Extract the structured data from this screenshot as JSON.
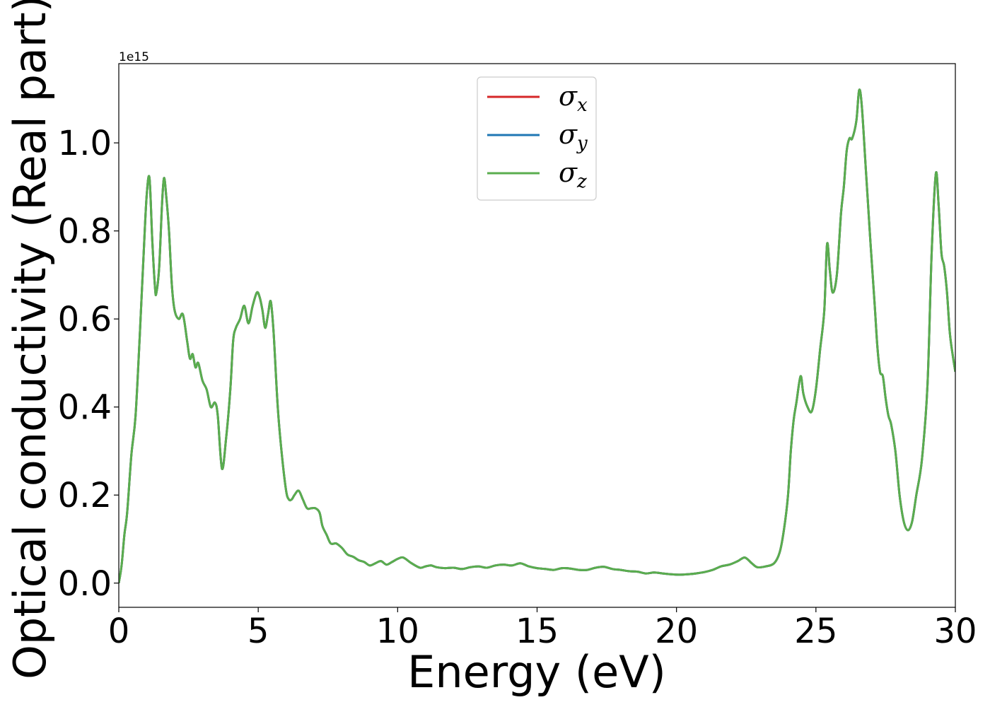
{
  "chart_data": {
    "type": "line",
    "xlabel": "Energy (eV)",
    "ylabel": "Optical conductivity (Real part)",
    "offset_text": "1e15",
    "y_multiplier": 1000000000000000.0,
    "xlim": [
      0,
      30
    ],
    "ylim": [
      -0.055,
      1.18
    ],
    "x_ticks": [
      0,
      5,
      10,
      15,
      20,
      25,
      30
    ],
    "y_ticks": [
      0.0,
      0.2,
      0.4,
      0.6,
      0.8,
      1.0
    ],
    "x_tick_labels": [
      "0",
      "5",
      "10",
      "15",
      "20",
      "25",
      "30"
    ],
    "y_tick_labels": [
      "0.0",
      "0.2",
      "0.4",
      "0.6",
      "0.8",
      "1.0"
    ],
    "grid": false,
    "legend_placement": "upper-center",
    "series": [
      {
        "name": "σ",
        "sub": "x",
        "color": "#d62728"
      },
      {
        "name": "σ",
        "sub": "y",
        "color": "#1f77b4"
      },
      {
        "name": "σ",
        "sub": "z",
        "color": "#5aad4e"
      }
    ],
    "x": [
      0,
      0.1,
      0.2,
      0.3,
      0.45,
      0.6,
      0.75,
      0.9,
      1.0,
      1.1,
      1.2,
      1.3,
      1.35,
      1.45,
      1.55,
      1.62,
      1.7,
      1.8,
      1.9,
      2.0,
      2.15,
      2.3,
      2.45,
      2.55,
      2.65,
      2.75,
      2.85,
      3.0,
      3.15,
      3.3,
      3.45,
      3.55,
      3.7,
      3.85,
      4.0,
      4.1,
      4.2,
      4.35,
      4.5,
      4.65,
      4.8,
      4.95,
      5.05,
      5.15,
      5.25,
      5.35,
      5.45,
      5.55,
      5.7,
      5.85,
      6.0,
      6.1,
      6.2,
      6.3,
      6.45,
      6.6,
      6.75,
      6.9,
      7.05,
      7.2,
      7.3,
      7.45,
      7.6,
      7.8,
      8.0,
      8.2,
      8.4,
      8.6,
      8.8,
      9.0,
      9.2,
      9.4,
      9.6,
      9.8,
      10.0,
      10.2,
      10.5,
      10.8,
      11.0,
      11.2,
      11.4,
      11.7,
      12.0,
      12.3,
      12.6,
      12.9,
      13.2,
      13.5,
      13.8,
      14.1,
      14.4,
      14.7,
      15.0,
      15.3,
      15.6,
      15.9,
      16.2,
      16.5,
      16.8,
      17.1,
      17.4,
      17.7,
      18.0,
      18.3,
      18.6,
      18.9,
      19.2,
      19.5,
      19.8,
      20.1,
      20.4,
      20.7,
      21.0,
      21.3,
      21.6,
      21.9,
      22.2,
      22.45,
      22.7,
      22.9,
      23.2,
      23.5,
      23.7,
      23.85,
      24.0,
      24.1,
      24.2,
      24.3,
      24.45,
      24.55,
      24.7,
      24.85,
      25.0,
      25.15,
      25.3,
      25.4,
      25.5,
      25.6,
      25.75,
      25.9,
      26.0,
      26.1,
      26.2,
      26.3,
      26.45,
      26.55,
      26.65,
      26.8,
      26.95,
      27.1,
      27.2,
      27.3,
      27.4,
      27.5,
      27.6,
      27.7,
      27.85,
      28.0,
      28.15,
      28.3,
      28.45,
      28.6,
      28.8,
      29.0,
      29.15,
      29.3,
      29.4,
      29.5,
      29.6,
      29.7,
      29.8,
      29.9,
      30.0
    ],
    "y": [
      0.0,
      0.04,
      0.11,
      0.16,
      0.29,
      0.38,
      0.56,
      0.76,
      0.88,
      0.92,
      0.78,
      0.67,
      0.66,
      0.72,
      0.86,
      0.92,
      0.88,
      0.8,
      0.68,
      0.62,
      0.6,
      0.61,
      0.55,
      0.51,
      0.52,
      0.49,
      0.5,
      0.46,
      0.44,
      0.4,
      0.41,
      0.38,
      0.26,
      0.33,
      0.44,
      0.55,
      0.58,
      0.6,
      0.63,
      0.59,
      0.63,
      0.66,
      0.65,
      0.62,
      0.58,
      0.61,
      0.64,
      0.57,
      0.4,
      0.29,
      0.21,
      0.19,
      0.19,
      0.2,
      0.21,
      0.19,
      0.17,
      0.17,
      0.17,
      0.16,
      0.13,
      0.11,
      0.09,
      0.09,
      0.08,
      0.065,
      0.06,
      0.052,
      0.048,
      0.04,
      0.045,
      0.05,
      0.042,
      0.048,
      0.055,
      0.058,
      0.045,
      0.035,
      0.038,
      0.04,
      0.036,
      0.034,
      0.035,
      0.032,
      0.036,
      0.038,
      0.035,
      0.04,
      0.042,
      0.04,
      0.045,
      0.038,
      0.034,
      0.032,
      0.03,
      0.034,
      0.033,
      0.03,
      0.03,
      0.035,
      0.037,
      0.032,
      0.03,
      0.027,
      0.026,
      0.022,
      0.024,
      0.022,
      0.02,
      0.019,
      0.02,
      0.022,
      0.025,
      0.03,
      0.038,
      0.042,
      0.05,
      0.058,
      0.045,
      0.036,
      0.038,
      0.045,
      0.07,
      0.12,
      0.2,
      0.3,
      0.37,
      0.41,
      0.47,
      0.43,
      0.4,
      0.39,
      0.44,
      0.53,
      0.62,
      0.77,
      0.71,
      0.66,
      0.7,
      0.84,
      0.9,
      0.98,
      1.01,
      1.01,
      1.05,
      1.12,
      1.08,
      0.93,
      0.78,
      0.64,
      0.54,
      0.48,
      0.47,
      0.42,
      0.38,
      0.36,
      0.3,
      0.2,
      0.14,
      0.12,
      0.14,
      0.2,
      0.28,
      0.45,
      0.75,
      0.93,
      0.86,
      0.75,
      0.72,
      0.66,
      0.57,
      0.52,
      0.48
    ]
  }
}
